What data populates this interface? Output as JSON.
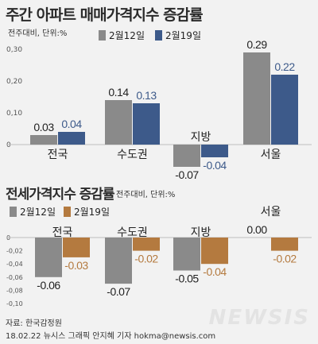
{
  "colors": {
    "gray": "#8a8a8a",
    "navy": "#3d5a8a",
    "orange": "#b47a3f",
    "navy_text": "#3d5a8a",
    "orange_text": "#b47a3f"
  },
  "chart1": {
    "title": "주간 아파트 매매가격지수 증감률",
    "subtitle": "전주대비, 단위:%",
    "legend": [
      "2월12일",
      "2월19일"
    ]
  },
  "chart2": {
    "title": "전세가격지수 증감률",
    "subtitle": "전주대비, 단위:%",
    "legend": [
      "2월12일",
      "2월19일"
    ]
  },
  "footer": {
    "source": "자료: 한국감정원",
    "credit": "18.02.22 뉴시스 그래픽 안지혜 기자 hokma@newsis.com"
  },
  "watermark": "NEWSIS",
  "chart_data": [
    {
      "type": "bar",
      "title": "주간 아파트 매매가격지수 증감률",
      "categories": [
        "전국",
        "수도권",
        "지방",
        "서울"
      ],
      "series": [
        {
          "name": "2월12일",
          "values": [
            0.03,
            0.14,
            -0.07,
            0.29
          ],
          "labels": [
            "0.03",
            "0.14",
            "-0.07",
            "0.29"
          ]
        },
        {
          "name": "2월19일",
          "values": [
            0.04,
            0.13,
            -0.04,
            0.22
          ],
          "labels": [
            "0.04",
            "0.13",
            "-0.04",
            "0.22"
          ]
        }
      ],
      "yticks": [
        "0,30",
        "0,20",
        "0,10",
        "0"
      ],
      "ytick_values": [
        0.3,
        0.2,
        0.1,
        0
      ],
      "ylim": [
        -0.08,
        0.3
      ]
    },
    {
      "type": "bar",
      "title": "전세가격지수 증감률",
      "categories": [
        "전국",
        "수도권",
        "지방",
        "서울"
      ],
      "series": [
        {
          "name": "2월12일",
          "values": [
            -0.06,
            -0.07,
            -0.05,
            0.0
          ],
          "labels": [
            "-0.06",
            "-0.07",
            "-0.05",
            "0.00"
          ]
        },
        {
          "name": "2월19일",
          "values": [
            -0.03,
            -0.02,
            -0.04,
            -0.02
          ],
          "labels": [
            "-0.03",
            "-0.02",
            "-0.04",
            "-0.02"
          ]
        }
      ],
      "yticks": [
        "0",
        "-0,02",
        "-0,04",
        "-0,06",
        "-0,08",
        "-0,10"
      ],
      "ytick_values": [
        0,
        -0.02,
        -0.04,
        -0.06,
        -0.08,
        -0.1
      ],
      "ylim": [
        -0.1,
        0
      ]
    }
  ]
}
